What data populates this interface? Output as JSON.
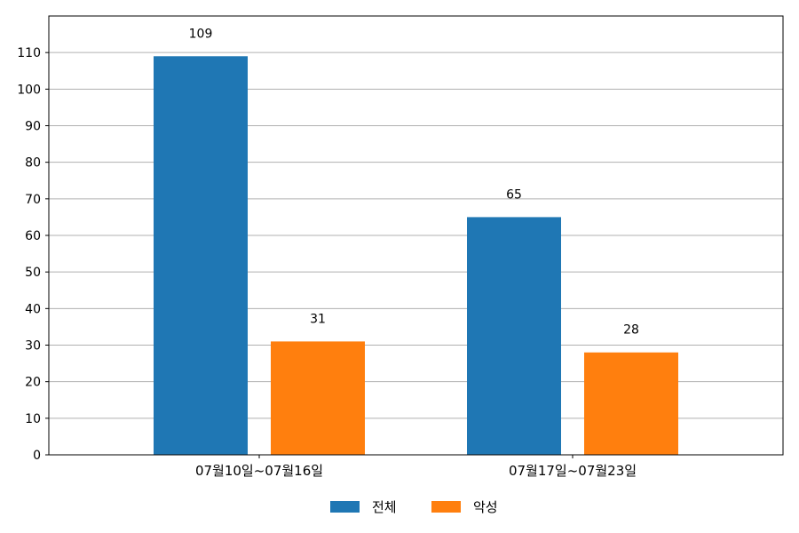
{
  "chart_data": {
    "type": "bar",
    "categories": [
      "07월10일~07월16일",
      "07월17일~07월23일"
    ],
    "series": [
      {
        "name": "전체",
        "values": [
          109,
          65
        ],
        "color": "#1f77b4"
      },
      {
        "name": "악성",
        "values": [
          31,
          28
        ],
        "color": "#ff7f0e"
      }
    ],
    "yticks": [
      0,
      10,
      20,
      30,
      40,
      50,
      60,
      70,
      80,
      90,
      100,
      110
    ],
    "ylim": [
      0,
      120
    ],
    "grid": true,
    "legend_position": "bottom-center",
    "data_labels": true
  }
}
